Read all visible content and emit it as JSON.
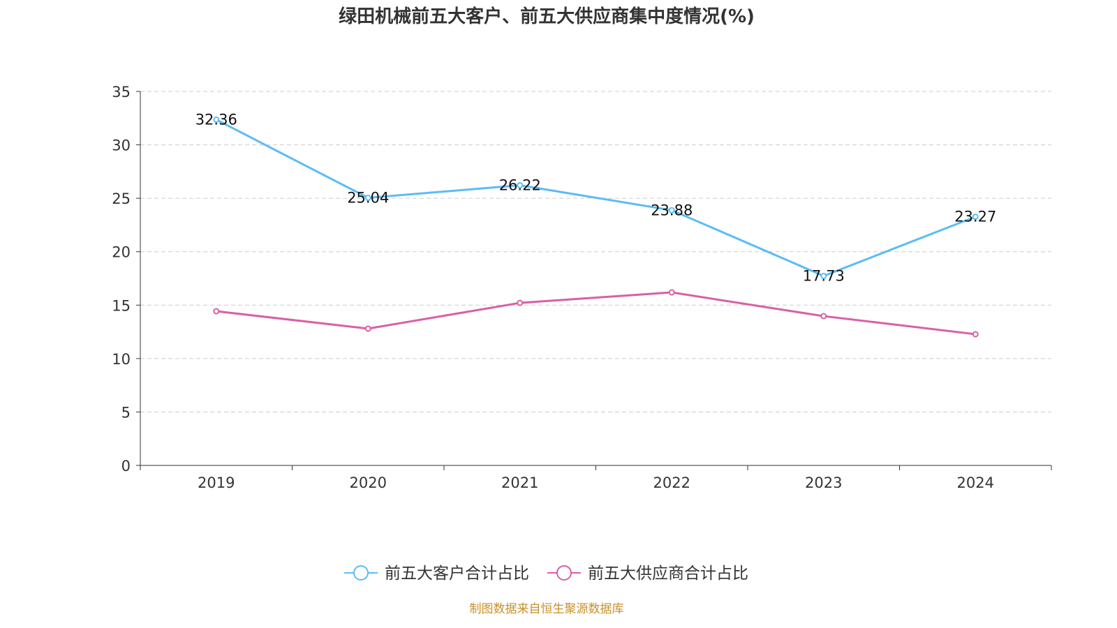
{
  "chart_data": {
    "type": "line",
    "title": "绿田机械前五大客户、前五大供应商集中度情况(%)",
    "categories": [
      "2019",
      "2020",
      "2021",
      "2022",
      "2023",
      "2024"
    ],
    "ylim": [
      0,
      35
    ],
    "yticks": [
      0,
      5,
      10,
      15,
      20,
      25,
      30,
      35
    ],
    "grid": true,
    "legend_position": "bottom",
    "series": [
      {
        "name": "前五大客户合计占比",
        "color": "#5bbcf5",
        "values": [
          32.36,
          25.04,
          26.22,
          23.88,
          17.73,
          23.27
        ],
        "labels": true
      },
      {
        "name": "前五大供应商合计占比",
        "color": "#d95fa6",
        "values": [
          14.43,
          12.8,
          15.21,
          16.19,
          13.97,
          12.28
        ],
        "labels": false
      }
    ]
  },
  "source": "制图数据来自恒生聚源数据库"
}
